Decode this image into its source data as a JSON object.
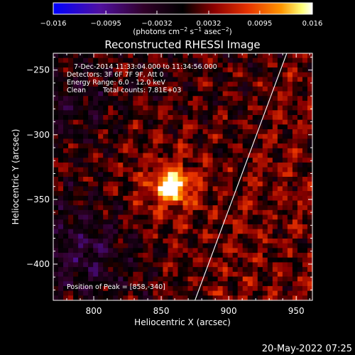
{
  "colorbar": {
    "tick_labels": [
      "−0.016",
      "−0.0095",
      "−0.0032",
      "0.0032",
      "0.0095",
      "0.016"
    ],
    "tick_values": [
      -0.016,
      -0.0095,
      -0.0032,
      0.0032,
      0.0095,
      0.016
    ],
    "range": [
      -0.016,
      0.016
    ],
    "units_prefix": "(photons cm",
    "units_exp1": "−2",
    "units_middle": " s",
    "units_exp2": "−1",
    "units_middle2": " asec",
    "units_exp3": "−2",
    "units_suffix": ")"
  },
  "chart_data": {
    "type": "heatmap",
    "title": "Reconstructed RHESSI Image",
    "xlabel": "Heliocentric X (arcsec)",
    "ylabel": "Heliocentric Y (arcsec)",
    "xlim": [
      770,
      962
    ],
    "ylim": [
      -428,
      -237
    ],
    "x_ticks": [
      800,
      850,
      900,
      950
    ],
    "y_ticks": [
      -250,
      -300,
      -350,
      -400
    ],
    "x_tick_labels": [
      "800",
      "850",
      "900",
      "950"
    ],
    "y_tick_labels": [
      "−250",
      "−300",
      "−350",
      "−400"
    ],
    "peak": {
      "x": 858,
      "y": -340
    },
    "colormap": [
      "#0000ff",
      "#5010a0",
      "#300028",
      "#000000",
      "#8c0000",
      "#e63200",
      "#ff9600",
      "#ffff78",
      "#ffffff"
    ],
    "limb_points": [
      [
        943,
        -237
      ],
      [
        875,
        -428
      ]
    ]
  },
  "annotations": {
    "time_range": "7-Dec-2014 11:33:04.000 to 11:34:56.000",
    "detectors": "Detectors: 3F 6F 7F 9F, Att 0",
    "energy": "Energy Range: 6.0 - 12.0 keV",
    "method": "Clean",
    "total_counts": "Total counts: 7.81E+03",
    "peak_position": "Position of Peak = [858,-340]"
  },
  "footer": {
    "timestamp": "20-May-2022 07:25"
  }
}
